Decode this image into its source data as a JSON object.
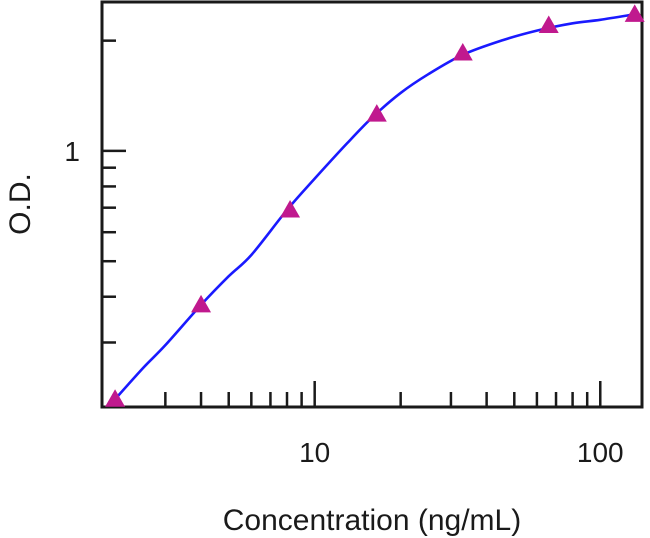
{
  "chart_data": {
    "type": "line",
    "title": "",
    "xlabel": "Concentration (ng/mL)",
    "ylabel": "O.D.",
    "x_scale": "log",
    "y_scale": "log",
    "xlim": [
      1.8,
      140
    ],
    "ylim": [
      0.2,
      2.55
    ],
    "x_ticks": [
      {
        "value": 10,
        "label": "10"
      },
      {
        "value": 100,
        "label": "100"
      }
    ],
    "y_ticks": [
      {
        "value": 1,
        "label": "1"
      }
    ],
    "grid": false,
    "legend": "none",
    "colors": {
      "curve": "#1a1aff",
      "markers": "#c0198e",
      "axes": "#1a1a1a"
    },
    "series": [
      {
        "marker": "triangle",
        "x": [
          2,
          4,
          8.2,
          16.5,
          33,
          66,
          132
        ],
        "y": [
          0.21,
          0.38,
          0.69,
          1.26,
          1.85,
          2.2,
          2.36
        ]
      }
    ],
    "fit_curve": {
      "type": "4PL",
      "x": [
        2,
        2.5,
        3,
        4,
        5,
        6,
        8,
        10,
        13,
        16,
        20,
        25,
        33,
        45,
        60,
        80,
        100,
        132
      ],
      "y": [
        0.21,
        0.255,
        0.295,
        0.38,
        0.455,
        0.52,
        0.69,
        0.84,
        1.05,
        1.24,
        1.44,
        1.62,
        1.83,
        2.0,
        2.13,
        2.23,
        2.28,
        2.36
      ]
    }
  }
}
